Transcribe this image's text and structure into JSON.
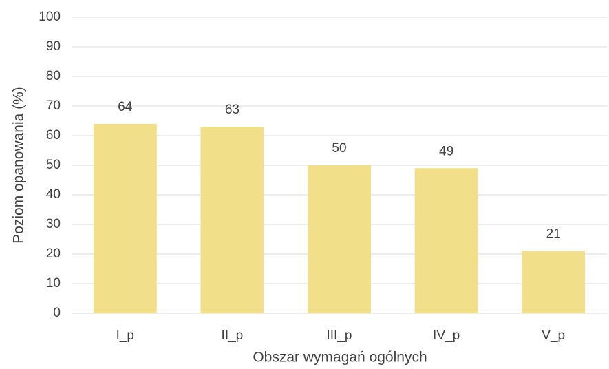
{
  "chart_data": {
    "type": "bar",
    "categories": [
      "I_p",
      "II_p",
      "III_p",
      "IV_p",
      "V_p"
    ],
    "values": [
      64,
      63,
      50,
      49,
      21
    ],
    "color": "#f2df8a",
    "xlabel": "Obszar wymagań ogólnych",
    "ylabel": "Poziom opanowania (%)",
    "ylim": [
      0,
      100
    ],
    "yticks": [
      0,
      10,
      20,
      30,
      40,
      50,
      60,
      70,
      80,
      90,
      100
    ],
    "grid": true
  }
}
